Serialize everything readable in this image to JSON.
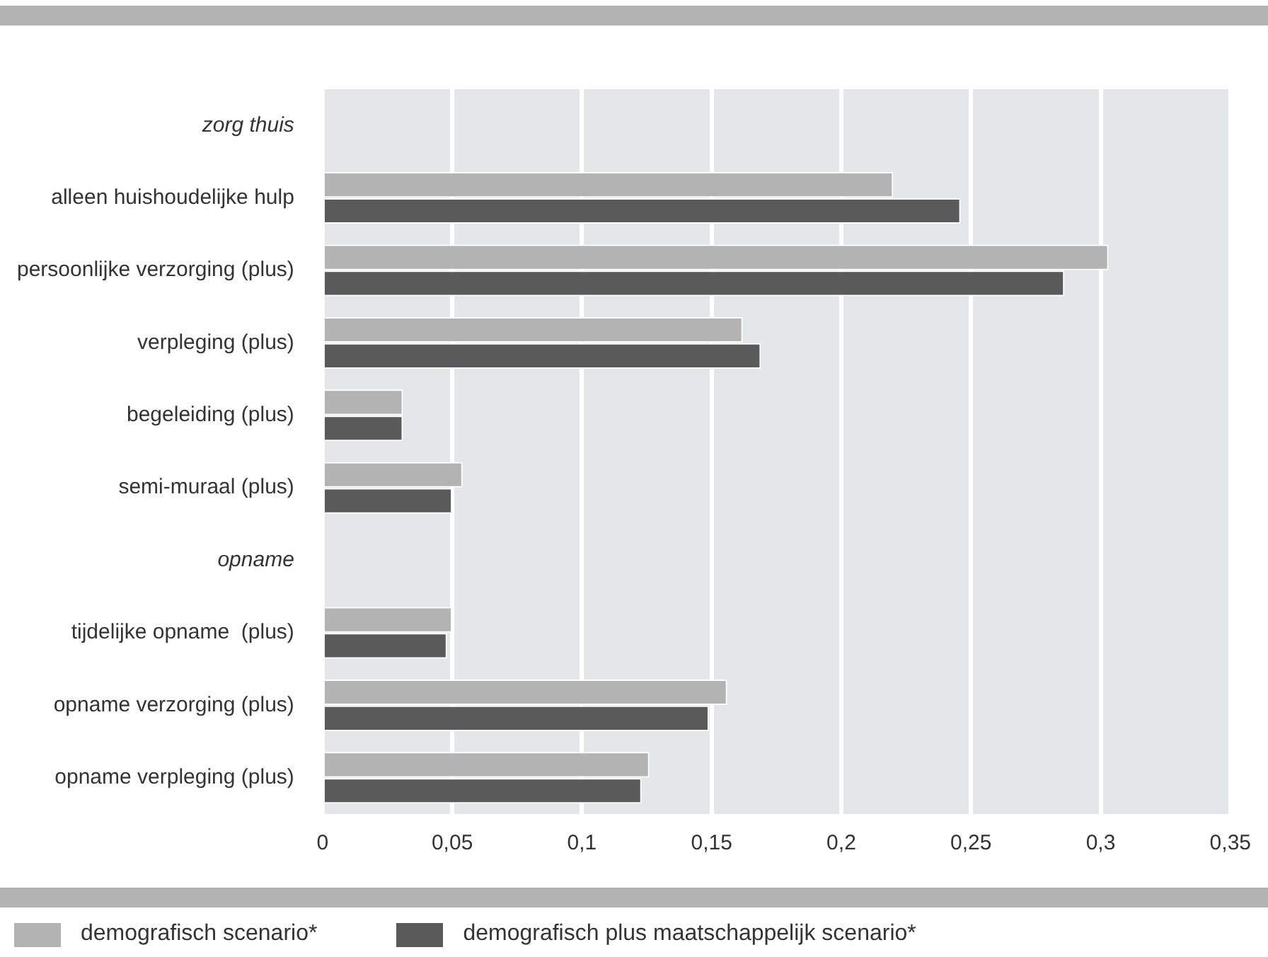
{
  "chart_data": {
    "type": "bar",
    "orientation": "horizontal",
    "categories": [
      "zorg thuis",
      "alleen huishoudelijke hulp",
      "persoonlijke verzorging (plus)",
      "verpleging (plus)",
      "begeleiding (plus)",
      "semi-muraal (plus)",
      "opname",
      "tijdelijke opname  (plus)",
      "opname verzorging (plus)",
      "opname verpleging (plus)"
    ],
    "series": [
      {
        "name": "demografisch scenario*",
        "color": "#b3b3b3",
        "values": [
          null,
          0.22,
          0.303,
          0.162,
          0.031,
          0.054,
          null,
          0.05,
          0.156,
          0.126
        ]
      },
      {
        "name": "demografisch plus maatschappelijk scenario*",
        "color": "#5a5a5a",
        "values": [
          null,
          0.246,
          0.286,
          0.169,
          0.031,
          0.05,
          null,
          0.048,
          0.149,
          0.123
        ]
      }
    ],
    "xlim": [
      0,
      0.35
    ],
    "xticks": [
      0,
      {
        "value": 0.05,
        "label": "0,05"
      },
      {
        "value": 0.1,
        "label": "0,1"
      },
      {
        "value": 0.15,
        "label": "0,15"
      },
      {
        "value": 0.2,
        "label": "0,2"
      },
      {
        "value": 0.25,
        "label": "0,25"
      },
      {
        "value": 0.3,
        "label": "0,3"
      },
      {
        "value": 0.35,
        "label": "0,35"
      }
    ],
    "grid": "x",
    "legend": "bottom"
  }
}
